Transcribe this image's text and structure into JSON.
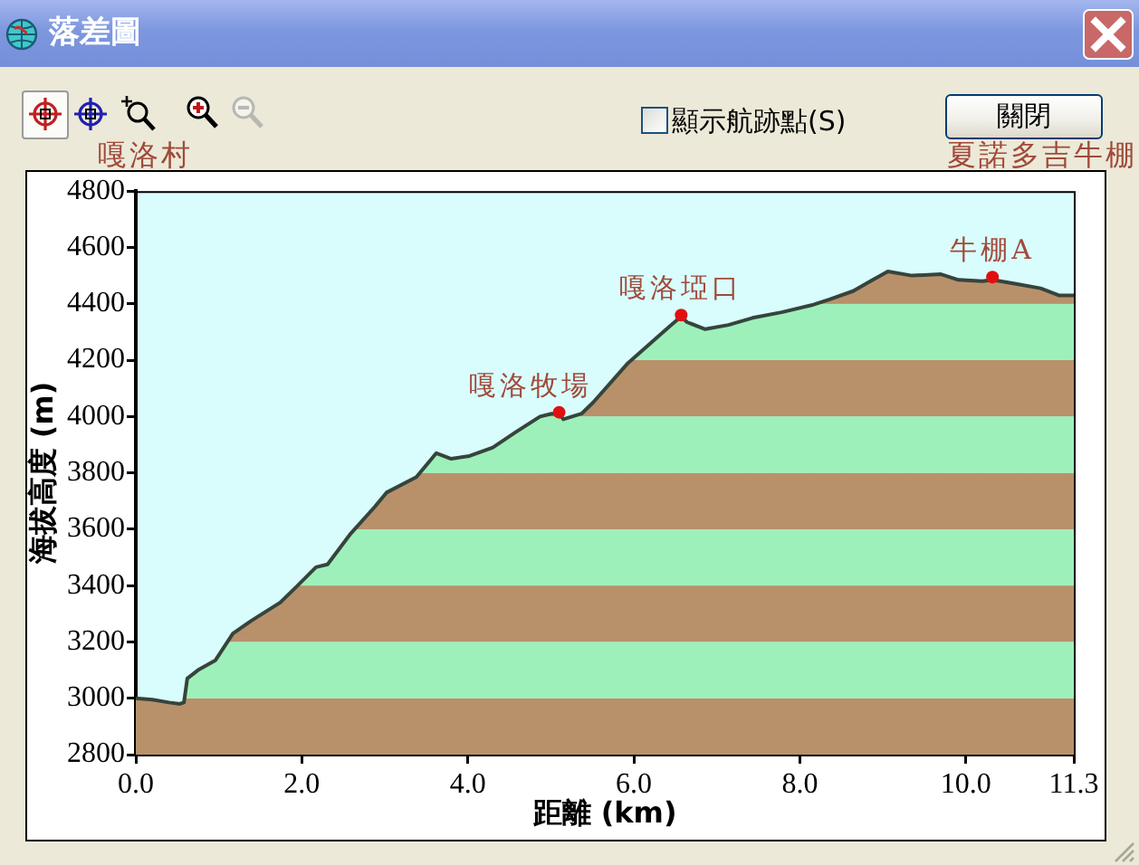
{
  "chart_data": {
    "type": "area",
    "title": "落差圖",
    "xlabel": "距離 (km)",
    "ylabel": "海拔高度 (m)",
    "xlim": [
      0,
      11.3
    ],
    "xticks": [
      {
        "value": 0,
        "label": "0.0"
      },
      {
        "value": 2,
        "label": "2.0"
      },
      {
        "value": 4,
        "label": "4.0"
      },
      {
        "value": 6,
        "label": "6.0"
      },
      {
        "value": 8,
        "label": "8.0"
      },
      {
        "value": 10,
        "label": "10.0"
      },
      {
        "value": 11.3,
        "label": "11.3"
      }
    ],
    "ylim": [
      2800,
      4800
    ],
    "yticks": [
      2800,
      3000,
      3200,
      3400,
      3600,
      3800,
      4000,
      4200,
      4400,
      4600,
      4800
    ],
    "series": [
      {
        "color": "#36443c",
        "x": [
          0,
          0.2,
          0.4,
          0.53,
          0.58,
          0.62,
          0.75,
          0.96,
          1.17,
          1.39,
          1.74,
          1.95,
          2.17,
          2.31,
          2.59,
          2.88,
          3.02,
          3.38,
          3.62,
          3.8,
          4.02,
          4.3,
          4.58,
          4.87,
          5.01,
          5.1,
          5.15,
          5.37,
          5.51,
          5.93,
          6.22,
          6.43,
          6.57,
          6.64,
          6.86,
          7.14,
          7.43,
          7.78,
          8.14,
          8.35,
          8.64,
          8.85,
          9.06,
          9.35,
          9.7,
          9.91,
          10.2,
          10.32,
          10.62,
          10.9,
          11.12,
          11.3
        ],
        "values": [
          3000,
          2995,
          2985,
          2980,
          2985,
          3070,
          3100,
          3135,
          3230,
          3275,
          3340,
          3400,
          3465,
          3475,
          3585,
          3680,
          3730,
          3785,
          3870,
          3850,
          3860,
          3890,
          3945,
          4000,
          4010,
          4010,
          3990,
          4010,
          4050,
          4190,
          4265,
          4320,
          4355,
          4335,
          4310,
          4325,
          4350,
          4370,
          4395,
          4415,
          4445,
          4480,
          4515,
          4500,
          4505,
          4485,
          4480,
          4485,
          4470,
          4455,
          4430,
          4430
        ]
      },
      {
        "type": "scatter",
        "color": "#e01010",
        "marker": "circle",
        "x": [
          5.1,
          6.57,
          10.32
        ],
        "values": [
          4015,
          4360,
          4495
        ]
      }
    ],
    "bands": [
      {
        "axis": "y",
        "from": 2800,
        "to": 3000,
        "color": "#b8916a"
      },
      {
        "axis": "y",
        "from": 3000,
        "to": 3200,
        "color": "#9ef0bb"
      },
      {
        "axis": "y",
        "from": 3200,
        "to": 3400,
        "color": "#b8916a"
      },
      {
        "axis": "y",
        "from": 3400,
        "to": 3600,
        "color": "#9ef0bb"
      },
      {
        "axis": "y",
        "from": 3600,
        "to": 3800,
        "color": "#b8916a"
      },
      {
        "axis": "y",
        "from": 3800,
        "to": 4000,
        "color": "#9ef0bb"
      },
      {
        "axis": "y",
        "from": 4000,
        "to": 4200,
        "color": "#b8916a"
      },
      {
        "axis": "y",
        "from": 4200,
        "to": 4400,
        "color": "#9ef0bb"
      },
      {
        "axis": "y",
        "from": 4400,
        "to": 4600,
        "color": "#b8916a"
      }
    ],
    "annotations": [
      "嘎洛村",
      "夏諾多吉牛棚",
      {
        "text": "嘎洛牧場",
        "x": 5.1,
        "y": 4015
      },
      {
        "text": "嘎洛埡口",
        "x": 6.57,
        "y": 4360
      },
      {
        "text": "牛棚A",
        "x": 10.32,
        "y": 4495
      },
      "顯示航跡點(S)",
      "關閉"
    ]
  }
}
